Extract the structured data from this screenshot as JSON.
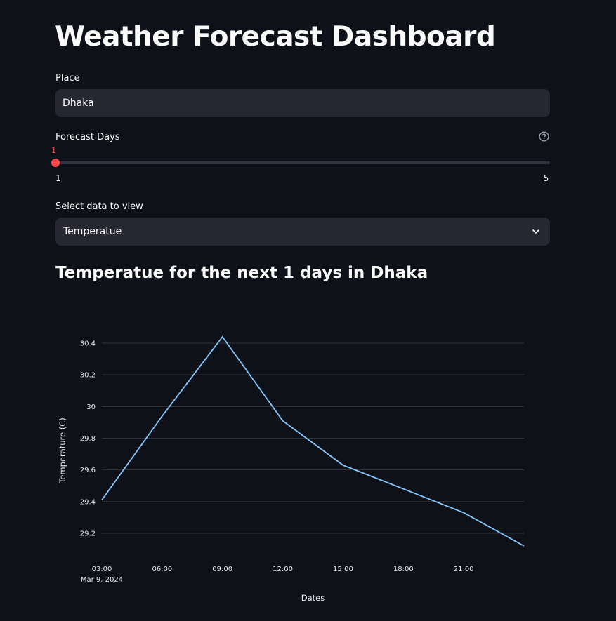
{
  "page": {
    "title": "Weather Forecast Dashboard"
  },
  "place": {
    "label": "Place",
    "value": "Dhaka"
  },
  "forecast_days": {
    "label": "Forecast Days",
    "help_icon": "question-circle-icon",
    "value": "1",
    "min": "1",
    "max": "5",
    "accent_color": "#ff4b4b"
  },
  "data_select": {
    "label": "Select data to view",
    "value": "Temperatue",
    "icon": "chevron-down-icon"
  },
  "chart_title": "Temperatue for the next 1 days in Dhaka",
  "chart_data": {
    "type": "line",
    "title": "",
    "xlabel": "Dates",
    "ylabel": "Temperature (C)",
    "x": [
      "03:00",
      "06:00",
      "09:00",
      "12:00",
      "15:00",
      "18:00",
      "21:00",
      "24:00"
    ],
    "x_tick_labels": [
      "03:00",
      "06:00",
      "09:00",
      "12:00",
      "15:00",
      "18:00",
      "21:00"
    ],
    "x_date_label": "Mar 9, 2024",
    "series": [
      {
        "values": [
          29.41,
          29.94,
          30.44,
          29.91,
          29.63,
          29.48,
          29.33,
          29.12
        ],
        "color": "#83c9ff"
      }
    ],
    "y_ticks": [
      29.2,
      29.4,
      29.6,
      29.8,
      30,
      30.2,
      30.4
    ],
    "y_tick_labels": [
      "29.2",
      "29.4",
      "29.6",
      "29.8",
      "30",
      "30.2",
      "30.4"
    ],
    "ylim": [
      29.12,
      30.44
    ],
    "grid": true,
    "gridline_color": "#31333f"
  }
}
